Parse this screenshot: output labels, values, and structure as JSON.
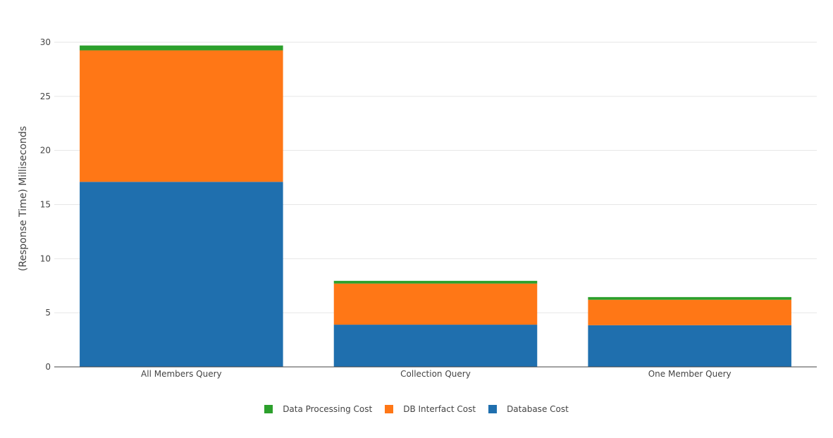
{
  "chart_data": {
    "type": "bar",
    "stacked": true,
    "title": "",
    "xlabel": "",
    "ylabel": "(Response Time) Milliseconds",
    "categories": [
      "All Members Query",
      "Collection Query",
      "One Member Query"
    ],
    "series": [
      {
        "name": "Database Cost",
        "color": "#1f6fae",
        "values": [
          17.1,
          3.9,
          3.85
        ]
      },
      {
        "name": "DB Interfact Cost",
        "color": "#ff7716",
        "values": [
          12.15,
          3.8,
          2.35
        ]
      },
      {
        "name": "Data Processing Cost",
        "color": "#2ca02c",
        "values": [
          0.45,
          0.25,
          0.25
        ]
      }
    ],
    "ylim": [
      0,
      30
    ],
    "yticks": [
      0,
      5,
      10,
      15,
      20,
      25,
      30
    ],
    "grid": true,
    "legend_position": "bottom"
  },
  "legend": [
    {
      "name": "Data Processing Cost",
      "color": "#2ca02c"
    },
    {
      "name": "DB Interfact Cost",
      "color": "#ff7716"
    },
    {
      "name": "Database Cost",
      "color": "#1f6fae"
    }
  ]
}
